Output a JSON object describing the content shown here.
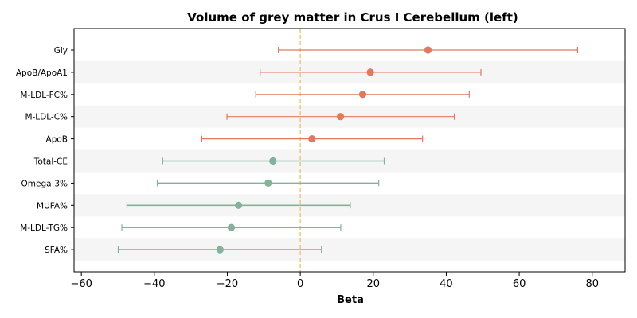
{
  "chart_data": {
    "type": "forest",
    "title": "Volume of grey matter in Crus I Cerebellum (left)",
    "xlabel": "Beta",
    "ylabel": "",
    "xlim": [
      -62,
      89
    ],
    "xticks": [
      -60,
      -40,
      -20,
      0,
      20,
      40,
      60,
      80
    ],
    "reference_line": 0,
    "grid": false,
    "colors": {
      "positive": "#e07a5f",
      "negative": "#81b29a",
      "refline": "#f2c46d",
      "band": "#f5f5f5"
    },
    "rows": [
      {
        "label": "Gly",
        "beta": 35.0,
        "lower": -6.0,
        "upper": 76.0,
        "group": "positive"
      },
      {
        "label": "ApoB/ApoA1",
        "beta": 19.2,
        "lower": -11.0,
        "upper": 49.5,
        "group": "positive"
      },
      {
        "label": "M-LDL-FC%",
        "beta": 17.1,
        "lower": -12.2,
        "upper": 46.3,
        "group": "positive"
      },
      {
        "label": "M-LDL-C%",
        "beta": 11.0,
        "lower": -20.1,
        "upper": 42.2,
        "group": "positive"
      },
      {
        "label": "ApoB",
        "beta": 3.2,
        "lower": -27.0,
        "upper": 33.5,
        "group": "positive"
      },
      {
        "label": "Total-CE",
        "beta": -7.5,
        "lower": -37.7,
        "upper": 23.0,
        "group": "negative"
      },
      {
        "label": "Omega-3%",
        "beta": -8.8,
        "lower": -39.2,
        "upper": 21.5,
        "group": "negative"
      },
      {
        "label": "MUFA%",
        "beta": -16.9,
        "lower": -47.5,
        "upper": 13.7,
        "group": "negative"
      },
      {
        "label": "M-LDL-TG%",
        "beta": -18.9,
        "lower": -48.9,
        "upper": 11.1,
        "group": "negative"
      },
      {
        "label": "SFA%",
        "beta": -22.0,
        "lower": -49.9,
        "upper": 5.8,
        "group": "negative"
      }
    ]
  }
}
